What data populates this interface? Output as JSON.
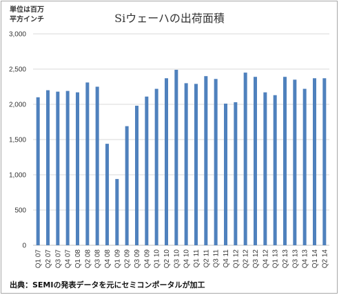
{
  "chart_data": {
    "type": "bar",
    "title": "Siウェーハの出荷面積",
    "unit_label_line1": "単位は百万",
    "unit_label_line2": "平方インチ",
    "source": "出典：SEMIの発表データを元にセミコンポータルが加工",
    "ylim": [
      0,
      3000
    ],
    "yticks": [
      0,
      500,
      1000,
      1500,
      2000,
      2500,
      3000
    ],
    "ytick_labels": [
      "0",
      "500",
      "1,000",
      "1,500",
      "2,000",
      "2,500",
      "3,000"
    ],
    "grid": true,
    "legend": "none",
    "bar_color": "#4f81bd",
    "categories": [
      "Q1 07",
      "Q2 07",
      "Q3 07",
      "Q4 07",
      "Q1 08",
      "Q2 08",
      "Q3 08",
      "Q4 08",
      "Q1 09",
      "Q2 09",
      "Q3 09",
      "Q4 09",
      "Q1 10",
      "Q2 10",
      "Q3 10",
      "Q4 10",
      "Q1 11",
      "Q2 11",
      "Q3 11",
      "Q4 11",
      "Q1 12",
      "Q2 12",
      "Q3 12",
      "Q4 12",
      "Q1 13",
      "Q2 13",
      "Q3 13",
      "Q4 13",
      "Q1 14",
      "Q2 14"
    ],
    "values": [
      2100,
      2200,
      2180,
      2190,
      2170,
      2310,
      2250,
      1440,
      940,
      1690,
      1980,
      2110,
      2220,
      2370,
      2490,
      2300,
      2290,
      2400,
      2360,
      2010,
      2030,
      2450,
      2390,
      2170,
      2130,
      2390,
      2350,
      2220,
      2370,
      2370
    ]
  }
}
